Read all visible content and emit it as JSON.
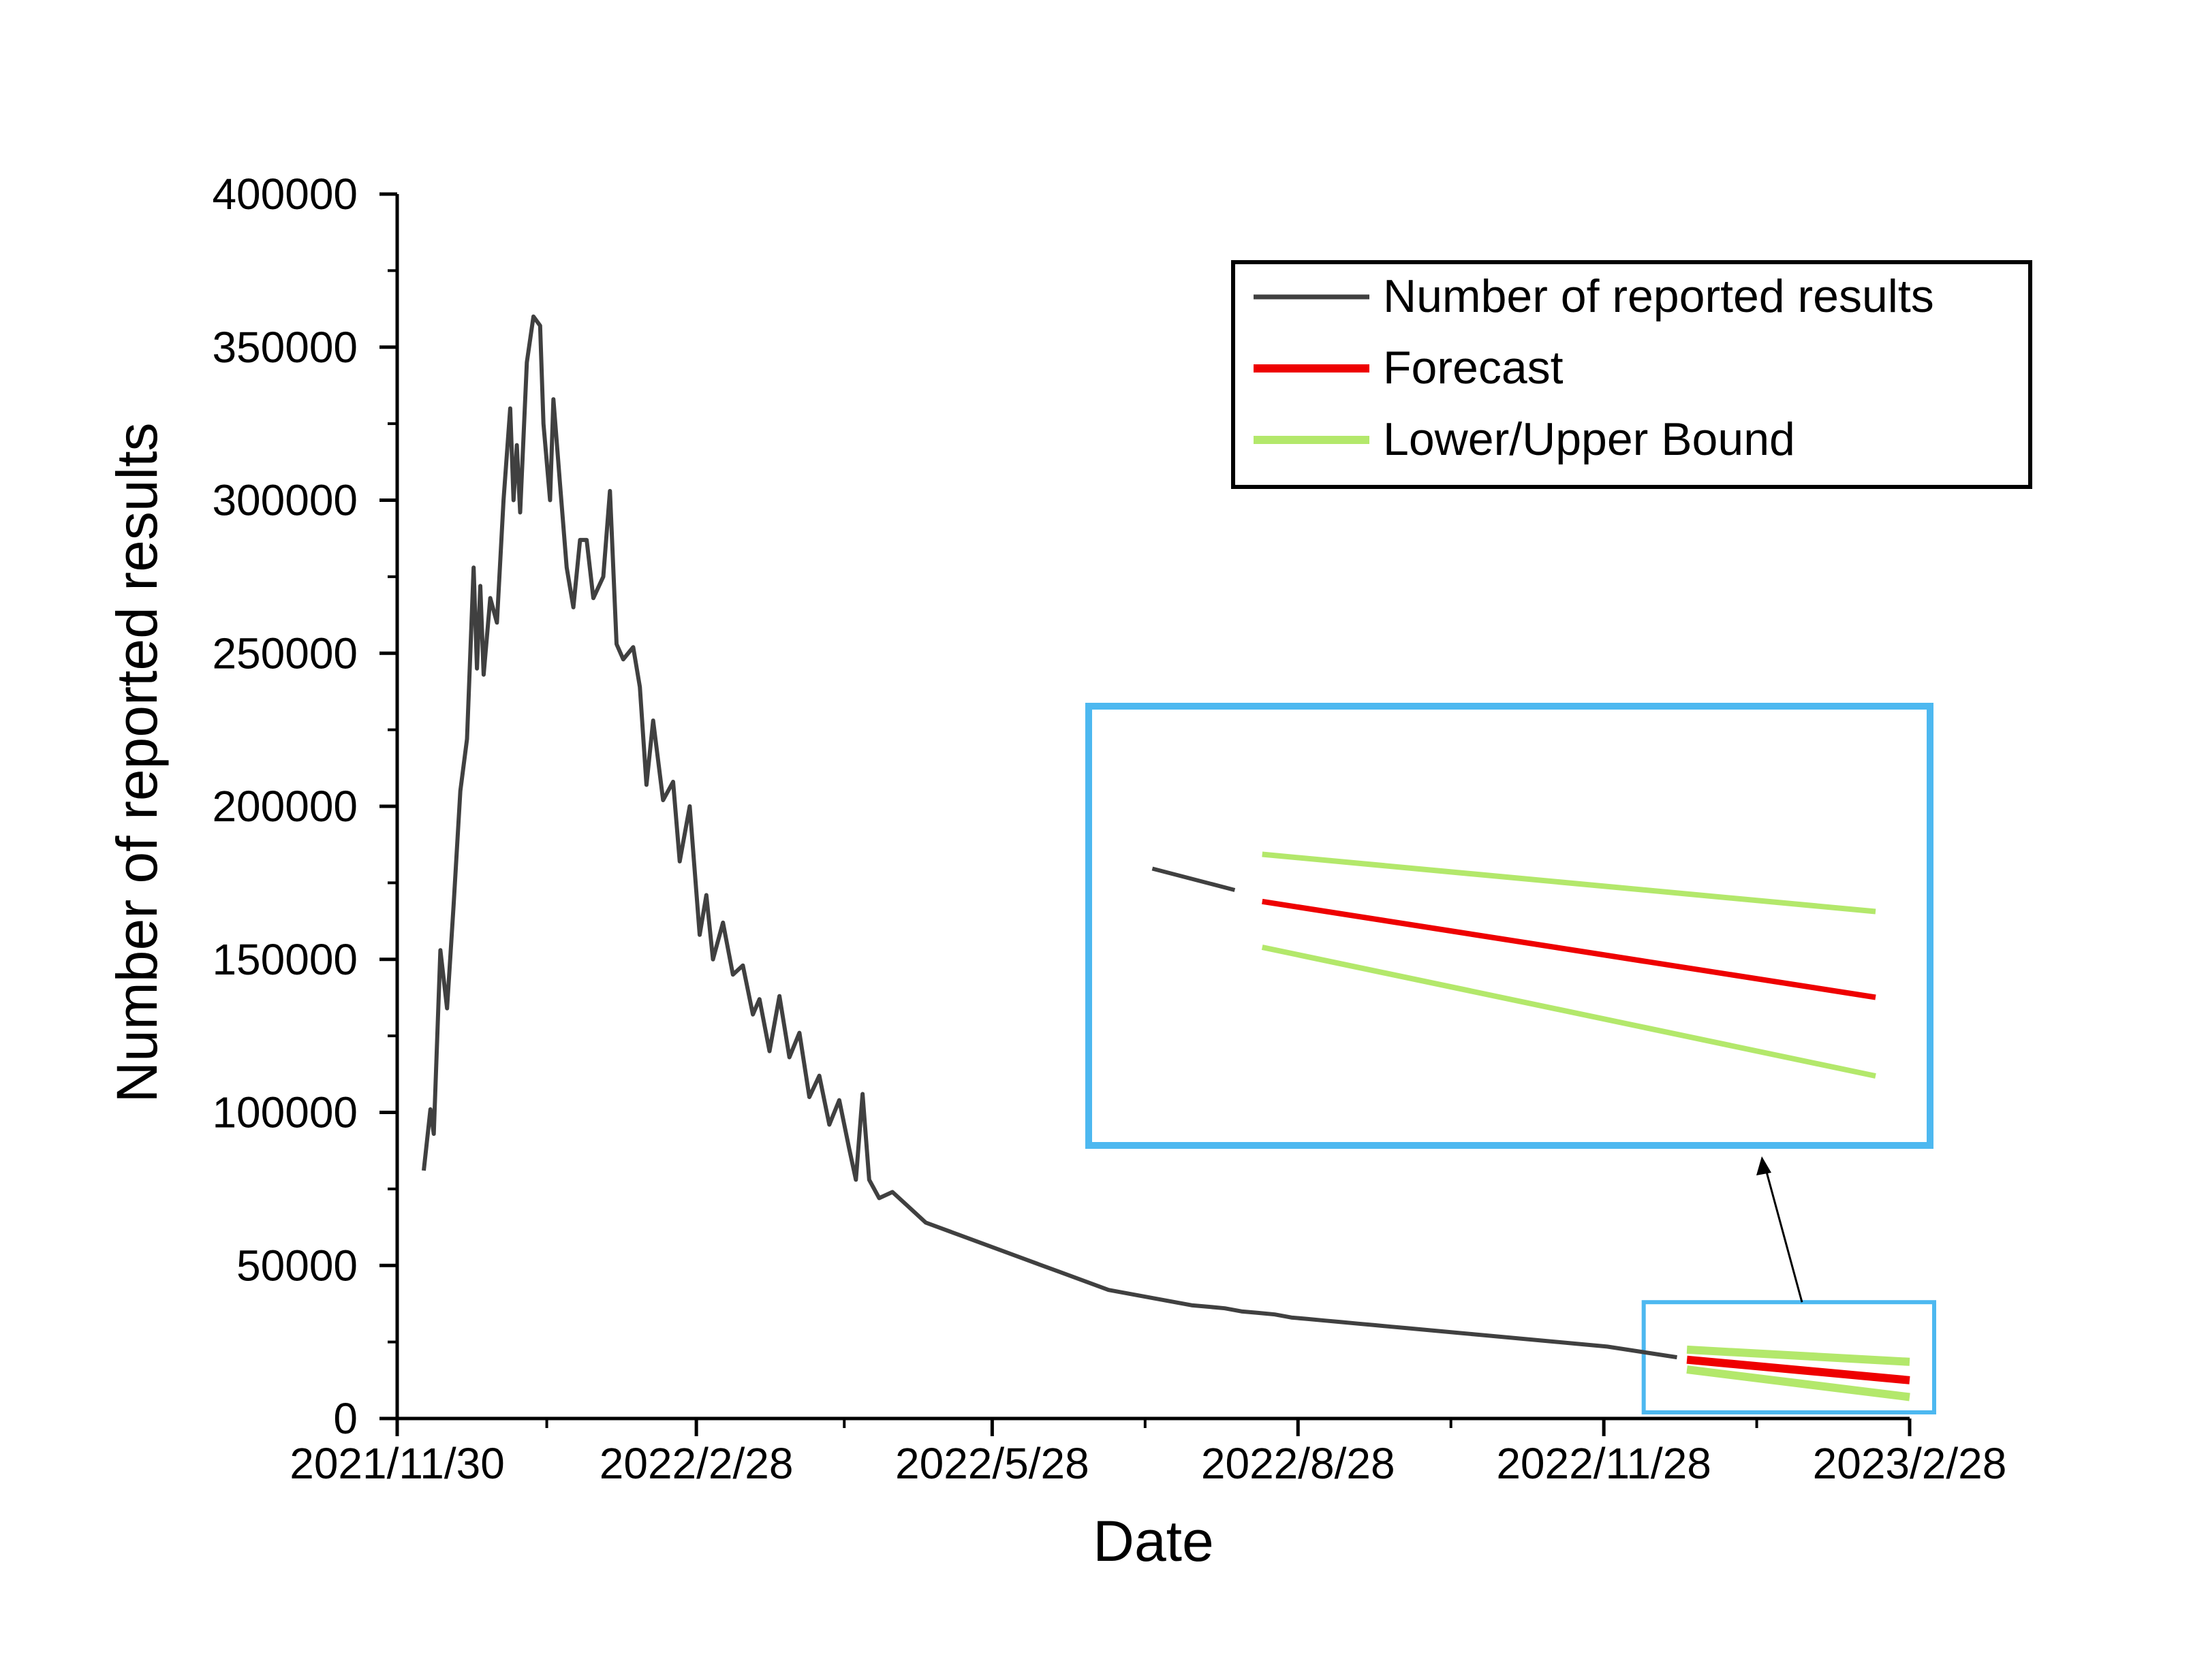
{
  "chart_data": {
    "type": "line",
    "title": "",
    "xlabel": "Date",
    "ylabel": "Number of  reported results",
    "xlim": [
      "2021-11-30",
      "2023-02-28"
    ],
    "ylim": [
      0,
      400000
    ],
    "x_ticks": [
      "2021/11/30",
      "2022/2/28",
      "2022/5/28",
      "2022/8/28",
      "2022/11/28",
      "2023/2/28"
    ],
    "y_ticks": [
      "0",
      "50000",
      "100000",
      "150000",
      "200000",
      "250000",
      "300000",
      "350000",
      "400000"
    ],
    "grid": false,
    "legend_position": "top-right",
    "series": [
      {
        "name": "Number of  reported results",
        "color": "#404040",
        "points": [
          [
            "2021-12-08",
            81000
          ],
          [
            "2021-12-10",
            101000
          ],
          [
            "2021-12-11",
            93000
          ],
          [
            "2021-12-13",
            153000
          ],
          [
            "2021-12-15",
            134000
          ],
          [
            "2021-12-17",
            168000
          ],
          [
            "2021-12-19",
            205000
          ],
          [
            "2021-12-21",
            222000
          ],
          [
            "2021-12-23",
            278000
          ],
          [
            "2021-12-24",
            245000
          ],
          [
            "2021-12-25",
            272000
          ],
          [
            "2021-12-26",
            243000
          ],
          [
            "2021-12-28",
            268000
          ],
          [
            "2021-12-30",
            260000
          ],
          [
            "2022-01-01",
            300000
          ],
          [
            "2022-01-03",
            330000
          ],
          [
            "2022-01-04",
            300000
          ],
          [
            "2022-01-05",
            318000
          ],
          [
            "2022-01-06",
            296000
          ],
          [
            "2022-01-08",
            345000
          ],
          [
            "2022-01-10",
            360000
          ],
          [
            "2022-01-12",
            357000
          ],
          [
            "2022-01-13",
            325000
          ],
          [
            "2022-01-15",
            300000
          ],
          [
            "2022-01-16",
            333000
          ],
          [
            "2022-01-18",
            305000
          ],
          [
            "2022-01-20",
            278000
          ],
          [
            "2022-01-22",
            265000
          ],
          [
            "2022-01-24",
            287000
          ],
          [
            "2022-01-26",
            287000
          ],
          [
            "2022-01-28",
            268000
          ],
          [
            "2022-01-31",
            275000
          ],
          [
            "2022-02-02",
            303000
          ],
          [
            "2022-02-04",
            253000
          ],
          [
            "2022-02-06",
            248000
          ],
          [
            "2022-02-09",
            252000
          ],
          [
            "2022-02-11",
            239000
          ],
          [
            "2022-02-13",
            207000
          ],
          [
            "2022-02-15",
            228000
          ],
          [
            "2022-02-18",
            202000
          ],
          [
            "2022-02-21",
            208000
          ],
          [
            "2022-02-23",
            182000
          ],
          [
            "2022-02-26",
            200000
          ],
          [
            "2022-03-01",
            158000
          ],
          [
            "2022-03-03",
            171000
          ],
          [
            "2022-03-05",
            150000
          ],
          [
            "2022-03-08",
            162000
          ],
          [
            "2022-03-11",
            145000
          ],
          [
            "2022-03-14",
            148000
          ],
          [
            "2022-03-17",
            132000
          ],
          [
            "2022-03-19",
            137000
          ],
          [
            "2022-03-22",
            120000
          ],
          [
            "2022-03-25",
            138000
          ],
          [
            "2022-03-28",
            118000
          ],
          [
            "2022-03-31",
            126000
          ],
          [
            "2022-04-03",
            105000
          ],
          [
            "2022-04-06",
            112000
          ],
          [
            "2022-04-09",
            96000
          ],
          [
            "2022-04-12",
            104000
          ],
          [
            "2022-04-15",
            88000
          ],
          [
            "2022-04-17",
            78000
          ],
          [
            "2022-04-19",
            106000
          ],
          [
            "2022-04-21",
            78000
          ],
          [
            "2022-04-24",
            72000
          ],
          [
            "2022-04-28",
            74000
          ],
          [
            "2022-05-03",
            69000
          ],
          [
            "2022-05-08",
            64000
          ],
          [
            "2022-05-13",
            62000
          ],
          [
            "2022-05-18",
            60000
          ],
          [
            "2022-05-23",
            58000
          ],
          [
            "2022-05-28",
            56000
          ],
          [
            "2022-06-02",
            54000
          ],
          [
            "2022-06-07",
            52000
          ],
          [
            "2022-06-12",
            50000
          ],
          [
            "2022-06-17",
            48000
          ],
          [
            "2022-06-22",
            46000
          ],
          [
            "2022-06-27",
            44000
          ],
          [
            "2022-07-02",
            42000
          ],
          [
            "2022-07-07",
            41000
          ],
          [
            "2022-07-12",
            40000
          ],
          [
            "2022-07-17",
            39000
          ],
          [
            "2022-07-22",
            38000
          ],
          [
            "2022-07-27",
            37000
          ],
          [
            "2022-08-01",
            36500
          ],
          [
            "2022-08-06",
            36000
          ],
          [
            "2022-08-11",
            35000
          ],
          [
            "2022-08-16",
            34500
          ],
          [
            "2022-08-21",
            34000
          ],
          [
            "2022-08-26",
            33000
          ],
          [
            "2022-08-31",
            32500
          ],
          [
            "2022-09-05",
            32000
          ],
          [
            "2022-09-10",
            31500
          ],
          [
            "2022-09-15",
            31000
          ],
          [
            "2022-09-20",
            30500
          ],
          [
            "2022-09-25",
            30000
          ],
          [
            "2022-09-30",
            29500
          ],
          [
            "2022-10-05",
            29000
          ],
          [
            "2022-10-10",
            28500
          ],
          [
            "2022-10-15",
            28000
          ],
          [
            "2022-10-20",
            27500
          ],
          [
            "2022-10-25",
            27000
          ],
          [
            "2022-10-30",
            26500
          ],
          [
            "2022-11-04",
            26000
          ],
          [
            "2022-11-09",
            25500
          ],
          [
            "2022-11-14",
            25000
          ],
          [
            "2022-11-19",
            24500
          ],
          [
            "2022-11-24",
            24000
          ],
          [
            "2022-11-29",
            23500
          ],
          [
            "2022-12-02",
            23000
          ],
          [
            "2022-12-05",
            22500
          ],
          [
            "2022-12-08",
            22000
          ],
          [
            "2022-12-11",
            21500
          ],
          [
            "2022-12-14",
            21000
          ],
          [
            "2022-12-17",
            20500
          ],
          [
            "2022-12-20",
            20000
          ]
        ]
      },
      {
        "name": "Forecast",
        "color": "#ee0000",
        "points": [
          [
            "2022-12-23",
            19200
          ],
          [
            "2023-02-28",
            12500
          ]
        ]
      },
      {
        "name": "Lower/Upper Bound",
        "color": "#b3e86b",
        "lower": [
          [
            "2022-12-23",
            16000
          ],
          [
            "2023-02-28",
            7000
          ]
        ],
        "upper": [
          [
            "2022-12-23",
            22500
          ],
          [
            "2023-02-28",
            18500
          ]
        ]
      }
    ],
    "inset": {
      "description_hidden": true,
      "x_range": [
        "2022-12-10",
        "2023-02-28"
      ],
      "y_range": [
        5000,
        30000
      ]
    }
  }
}
